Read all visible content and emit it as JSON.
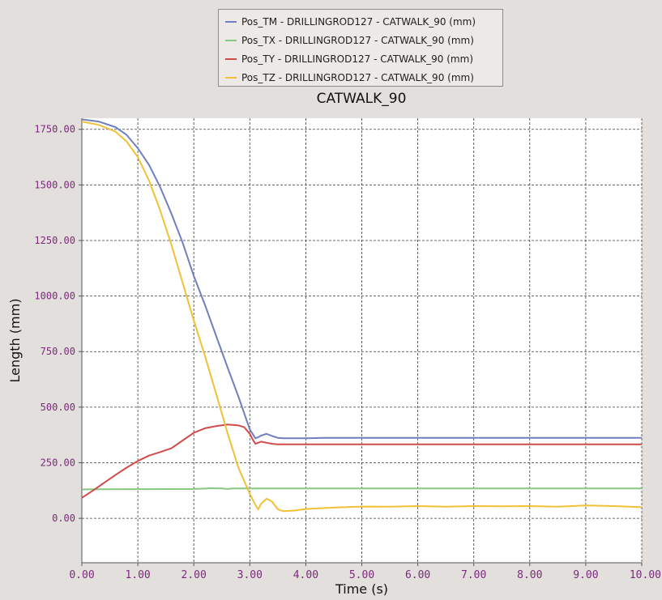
{
  "chart_data": {
    "type": "line",
    "title": "CATWALK_90",
    "xlabel": "Time (s)",
    "ylabel": "Length (mm)",
    "xlim": [
      0,
      10
    ],
    "ylim": [
      -200,
      1800
    ],
    "xticks": [
      "0.00",
      "1.00",
      "2.00",
      "3.00",
      "4.00",
      "5.00",
      "6.00",
      "7.00",
      "8.00",
      "9.00",
      "10.00"
    ],
    "yticks": [
      {
        "value": 0,
        "label": "0.00"
      },
      {
        "value": 250,
        "label": "250.00"
      },
      {
        "value": 500,
        "label": "500.00"
      },
      {
        "value": 750,
        "label": "750.00"
      },
      {
        "value": 1000,
        "label": "1000.00"
      },
      {
        "value": 1250,
        "label": "1250.00"
      },
      {
        "value": 1500,
        "label": "1500.00"
      },
      {
        "value": 1750,
        "label": "1750.00"
      }
    ],
    "grid": true,
    "legend_position": "top-center",
    "series": [
      {
        "name": "Pos_TM - DRILLINGROD127 - CATWALK_90 (mm)",
        "color": "#6f7fbf",
        "x": [
          0,
          0.3,
          0.6,
          0.8,
          1.0,
          1.2,
          1.4,
          1.6,
          1.8,
          2.0,
          2.2,
          2.4,
          2.6,
          2.8,
          3.0,
          3.1,
          3.15,
          3.2,
          3.3,
          3.4,
          3.5,
          3.6,
          4.0,
          4.3,
          5.0,
          6.0,
          7.0,
          8.0,
          9.0,
          10.0
        ],
        "y": [
          1795,
          1785,
          1760,
          1725,
          1665,
          1590,
          1490,
          1370,
          1240,
          1090,
          960,
          820,
          680,
          545,
          400,
          360,
          365,
          372,
          380,
          370,
          362,
          360,
          360,
          362,
          362,
          362,
          362,
          362,
          362,
          362
        ]
      },
      {
        "name": "Pos_TX - DRILLINGROD127 - CATWALK_90 (mm)",
        "color": "#88c880",
        "x": [
          0,
          1.0,
          2.0,
          2.3,
          2.5,
          2.6,
          2.7,
          3.0,
          4.0,
          5.0,
          6.0,
          7.0,
          8.0,
          9.0,
          10.0
        ],
        "y": [
          130,
          131,
          132,
          135,
          134,
          132,
          134,
          134,
          134,
          134,
          134,
          134,
          134,
          134,
          134
        ]
      },
      {
        "name": "Pos_TY - DRILLINGROD127 - CATWALK_90 (mm)",
        "color": "#d24a4a",
        "x": [
          0,
          0.2,
          0.4,
          0.6,
          0.8,
          1.0,
          1.2,
          1.4,
          1.6,
          1.8,
          2.0,
          2.2,
          2.4,
          2.6,
          2.8,
          2.9,
          3.0,
          3.05,
          3.1,
          3.15,
          3.2,
          3.3,
          3.4,
          3.5,
          4.0,
          5.0,
          6.0,
          7.0,
          8.0,
          9.0,
          10.0
        ],
        "y": [
          92,
          125,
          160,
          195,
          228,
          258,
          282,
          298,
          315,
          350,
          385,
          405,
          415,
          422,
          418,
          410,
          380,
          355,
          335,
          340,
          345,
          340,
          335,
          333,
          333,
          333,
          333,
          333,
          333,
          333,
          333
        ]
      },
      {
        "name": "Pos_TZ - DRILLINGROD127 - CATWALK_90 (mm)",
        "color": "#f2c034",
        "x": [
          0,
          0.3,
          0.6,
          0.8,
          1.0,
          1.2,
          1.4,
          1.6,
          1.8,
          2.0,
          2.2,
          2.4,
          2.6,
          2.8,
          3.0,
          3.1,
          3.15,
          3.2,
          3.3,
          3.4,
          3.5,
          3.6,
          3.8,
          4.0,
          4.5,
          5.0,
          5.5,
          6.0,
          6.5,
          7.0,
          7.5,
          8.0,
          8.5,
          9.0,
          9.5,
          10.0
        ],
        "y": [
          1785,
          1770,
          1740,
          1695,
          1625,
          1520,
          1385,
          1230,
          1060,
          890,
          730,
          560,
          385,
          225,
          110,
          60,
          40,
          65,
          88,
          75,
          40,
          32,
          35,
          42,
          48,
          53,
          52,
          55,
          52,
          55,
          54,
          55,
          52,
          58,
          55,
          50
        ]
      }
    ]
  }
}
